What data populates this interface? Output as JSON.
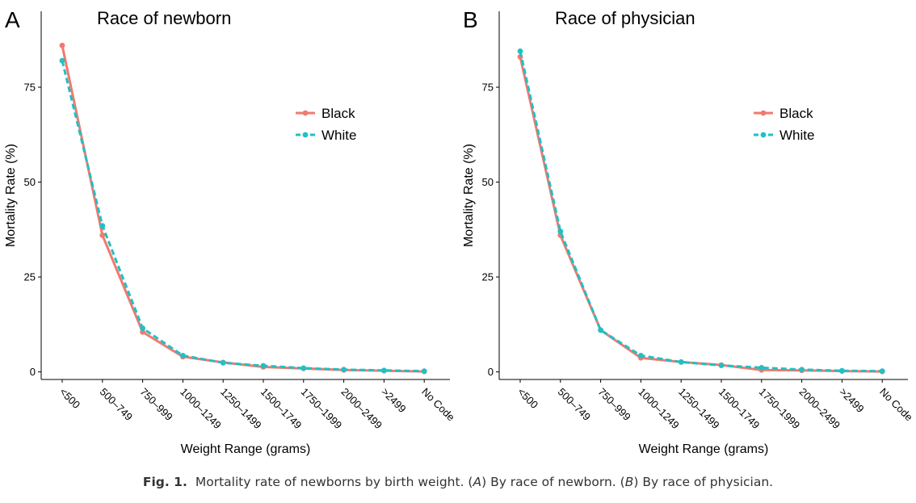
{
  "chart_data": [
    {
      "type": "line",
      "panel_label": "A",
      "title": "Race of newborn",
      "xlabel": "Weight Range (grams)",
      "ylabel": "Mortality Rate (%)",
      "categories": [
        "<500",
        "500–749",
        "750–999",
        "1000–1249",
        "1250–1499",
        "1500–1749",
        "1750–1999",
        "2000–2499",
        ">2499",
        "No Code"
      ],
      "yticks": [
        "0",
        "25",
        "50",
        "75"
      ],
      "ylim": [
        -2,
        95
      ],
      "legend_position": "right",
      "series": [
        {
          "name": "Black",
          "color": "#F07A6E",
          "dash": "solid",
          "values": [
            86,
            36,
            10.5,
            4,
            2.5,
            1.3,
            0.9,
            0.5,
            0.3,
            0.1
          ]
        },
        {
          "name": "White",
          "color": "#22BFC4",
          "dash": "dashed",
          "values": [
            82,
            38.5,
            11.5,
            4.3,
            2.4,
            1.6,
            1.0,
            0.6,
            0.4,
            0.2
          ]
        }
      ]
    },
    {
      "type": "line",
      "panel_label": "B",
      "title": "Race of physician",
      "xlabel": "Weight Range (grams)",
      "ylabel": "Mortality Rate (%)",
      "categories": [
        "<500",
        "500–749",
        "750–999",
        "1000–1249",
        "1250–1499",
        "1500–1749",
        "1750–1999",
        "2000–2499",
        ">2499",
        "No Code"
      ],
      "yticks": [
        "0",
        "25",
        "50",
        "75"
      ],
      "ylim": [
        -2,
        95
      ],
      "legend_position": "right",
      "series": [
        {
          "name": "Black",
          "color": "#F07A6E",
          "dash": "solid",
          "values": [
            83,
            36,
            11,
            3.7,
            2.6,
            1.8,
            0.5,
            0.4,
            0.2,
            0.1
          ]
        },
        {
          "name": "White",
          "color": "#22BFC4",
          "dash": "dashed",
          "values": [
            84.5,
            37,
            11,
            4.3,
            2.6,
            1.7,
            1.1,
            0.6,
            0.3,
            0.2
          ]
        }
      ]
    }
  ],
  "caption": {
    "label": "Fig. 1.",
    "text_1": "Mortality rate of newborns by birth weight. (",
    "em_a": "A",
    "text_2": ") By race of newborn. (",
    "em_b": "B",
    "text_3": ") By race of physician."
  }
}
